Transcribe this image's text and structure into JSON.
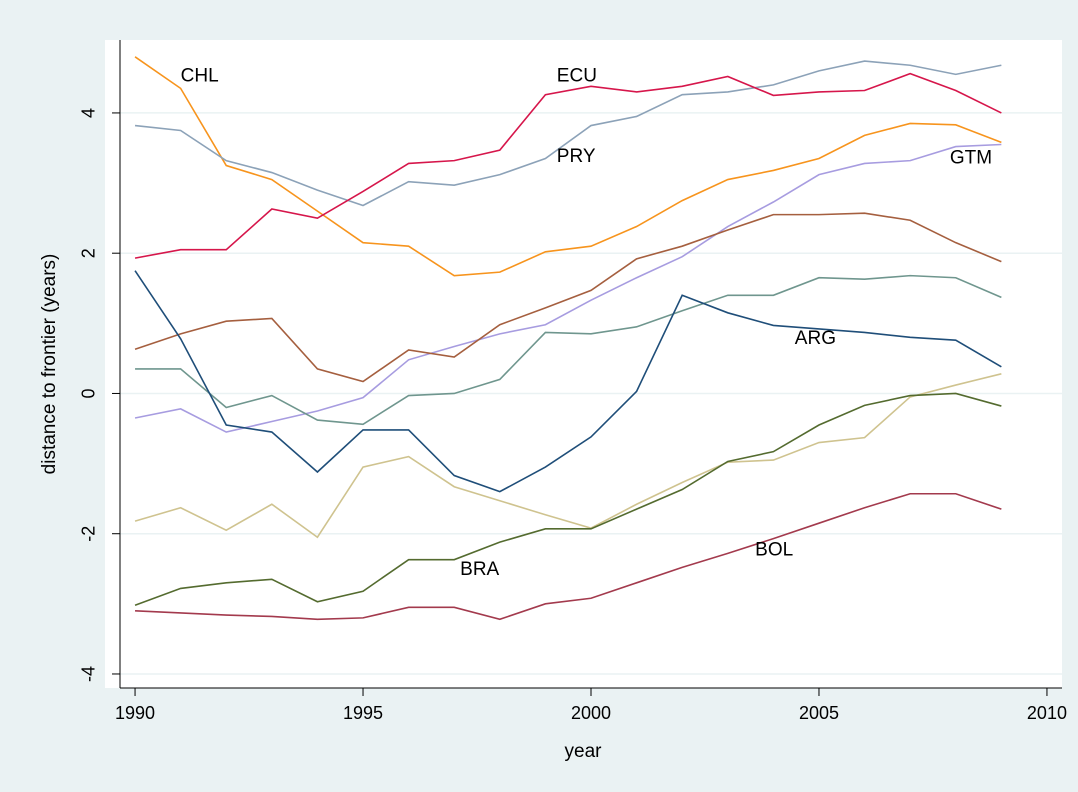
{
  "chart_data": {
    "type": "line",
    "x_label": "year",
    "y_label": "distance to frontier (years)",
    "x": [
      1990,
      1991,
      1992,
      1993,
      1994,
      1995,
      1996,
      1997,
      1998,
      1999,
      2000,
      2001,
      2002,
      2003,
      2004,
      2005,
      2006,
      2007,
      2008,
      2009
    ],
    "xlim": [
      1989.67,
      2010.33
    ],
    "xticks": [
      1990,
      1995,
      2000,
      2005,
      2010
    ],
    "ylim": [
      -4.2,
      5.04
    ],
    "yticks": [
      -4,
      -2,
      0,
      2,
      4
    ],
    "grid": true,
    "series": [
      {
        "color": "#f7941d",
        "values": [
          4.8,
          4.35,
          3.25,
          3.05,
          2.6,
          2.15,
          2.1,
          1.68,
          1.73,
          2.02,
          2.1,
          2.38,
          2.75,
          3.05,
          3.18,
          3.35,
          3.68,
          3.85,
          3.83,
          3.58
        ]
      },
      {
        "color": "#8ca2b8",
        "values": [
          3.82,
          3.75,
          3.32,
          3.15,
          2.9,
          2.68,
          3.02,
          2.97,
          3.12,
          3.35,
          3.82,
          3.95,
          4.26,
          4.3,
          4.4,
          4.6,
          4.74,
          4.68,
          4.55,
          4.68
        ]
      },
      {
        "color": "#d6164b",
        "values": [
          1.93,
          2.05,
          2.05,
          2.63,
          2.5,
          2.88,
          3.28,
          3.32,
          3.47,
          4.26,
          4.38,
          4.3,
          4.38,
          4.52,
          4.25,
          4.3,
          4.32,
          4.56,
          4.32,
          4.0
        ]
      },
      {
        "color": "#a79ce0",
        "values": [
          -0.35,
          -0.22,
          -0.55,
          -0.4,
          -0.25,
          -0.06,
          0.48,
          0.67,
          0.85,
          0.98,
          1.33,
          1.65,
          1.95,
          2.38,
          2.73,
          3.12,
          3.28,
          3.32,
          3.52,
          3.55
        ]
      },
      {
        "color": "#a55f3f",
        "values": [
          0.63,
          0.85,
          1.03,
          1.07,
          0.35,
          0.17,
          0.62,
          0.52,
          0.98,
          1.22,
          1.47,
          1.92,
          2.1,
          2.33,
          2.55,
          2.55,
          2.57,
          2.47,
          2.15,
          1.88
        ]
      },
      {
        "color": "#6f968e",
        "values": [
          0.35,
          0.35,
          -0.2,
          -0.03,
          -0.38,
          -0.44,
          -0.03,
          0.0,
          0.2,
          0.87,
          0.85,
          0.95,
          1.18,
          1.4,
          1.4,
          1.65,
          1.63,
          1.68,
          1.65,
          1.37
        ]
      },
      {
        "color": "#1f4e79",
        "values": [
          1.75,
          0.78,
          -0.45,
          -0.55,
          -1.12,
          -0.52,
          -0.52,
          -1.17,
          -1.4,
          -1.05,
          -0.62,
          0.03,
          1.4,
          1.15,
          0.97,
          0.92,
          0.87,
          0.8,
          0.76,
          0.38
        ]
      },
      {
        "color": "#cfc38f",
        "values": [
          -1.82,
          -1.63,
          -1.95,
          -1.58,
          -2.05,
          -1.05,
          -0.9,
          -1.33,
          -1.53,
          -1.73,
          -1.92,
          -1.58,
          -1.27,
          -0.98,
          -0.95,
          -0.7,
          -0.63,
          -0.05,
          0.12,
          0.28
        ]
      },
      {
        "color": "#546b2f",
        "values": [
          -3.02,
          -2.78,
          -2.7,
          -2.65,
          -2.97,
          -2.82,
          -2.37,
          -2.37,
          -2.12,
          -1.93,
          -1.93,
          -1.65,
          -1.37,
          -0.97,
          -0.83,
          -0.45,
          -0.17,
          -0.03,
          0.0,
          -0.18
        ]
      },
      {
        "color": "#a33a4d",
        "values": [
          -3.1,
          -3.13,
          -3.16,
          -3.18,
          -3.22,
          -3.2,
          -3.05,
          -3.05,
          -3.22,
          -3.0,
          -2.92,
          -2.7,
          -2.48,
          -2.28,
          -2.07,
          -1.85,
          -1.63,
          -1.43,
          -1.43,
          -1.65
        ]
      }
    ],
    "annotations": [
      {
        "text": "CHL",
        "x": 1991.0,
        "y": 4.52
      },
      {
        "text": "ECU",
        "x": 1999.25,
        "y": 4.52
      },
      {
        "text": "PRY",
        "x": 1999.25,
        "y": 3.37
      },
      {
        "text": "GTM",
        "x": 2007.87,
        "y": 3.35
      },
      {
        "text": "ARG",
        "x": 2004.47,
        "y": 0.78
      },
      {
        "text": "BRA",
        "x": 1997.13,
        "y": -2.52
      },
      {
        "text": "BOL",
        "x": 2003.6,
        "y": -2.24
      }
    ]
  }
}
